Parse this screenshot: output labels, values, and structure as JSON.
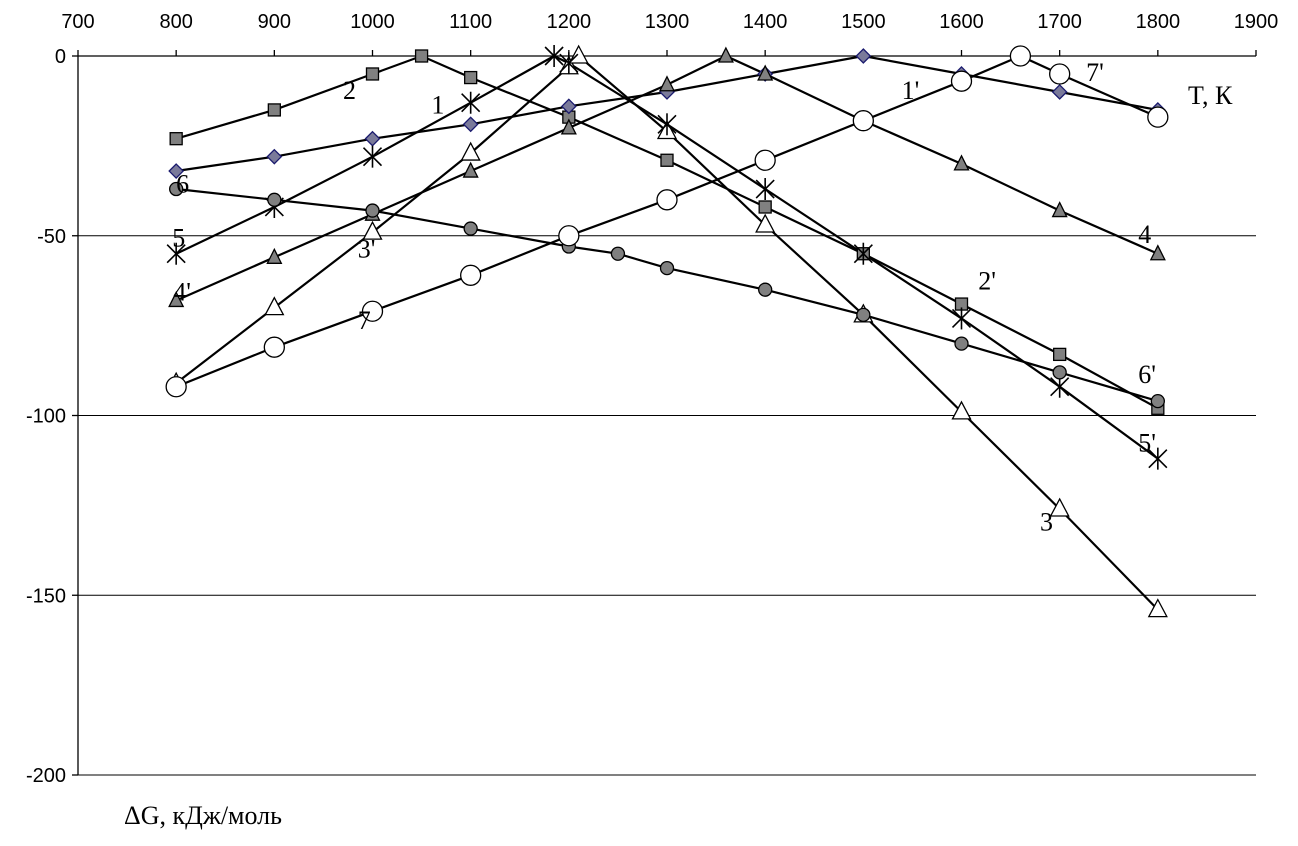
{
  "chart_data": {
    "type": "line",
    "xlabel": "T, К",
    "ylabel": "ΔG, кДж/моль",
    "xlim": [
      700,
      1900
    ],
    "ylim": [
      -200,
      0
    ],
    "x_ticks": [
      700,
      800,
      900,
      1000,
      1100,
      1200,
      1300,
      1400,
      1500,
      1600,
      1700,
      1800,
      1900
    ],
    "y_ticks": [
      0,
      -50,
      -100,
      -150,
      -200
    ],
    "grid": "horizontal",
    "x_axis_position": "top",
    "series": [
      {
        "marker": "square",
        "color": "#808080",
        "x": [
          800,
          900,
          1000,
          1050,
          1100,
          1200,
          1300,
          1400,
          1500,
          1600,
          1700,
          1800
        ],
        "y": [
          -23,
          -15,
          -5,
          0,
          -6,
          -17,
          -29,
          -42,
          -55,
          -69,
          -83,
          -98
        ]
      },
      {
        "marker": "diamond",
        "color": "#7a7a9a",
        "x": [
          800,
          900,
          1000,
          1100,
          1200,
          1300,
          1400,
          1500,
          1600,
          1700,
          1800
        ],
        "y": [
          -32,
          -28,
          -23,
          -19,
          -14,
          -10,
          -5,
          0,
          -5,
          -10,
          -15
        ]
      },
      {
        "marker": "triangle-open",
        "color": "#ffffff",
        "x": [
          800,
          900,
          1000,
          1100,
          1200,
          1210,
          1300,
          1400,
          1500,
          1600,
          1700,
          1800
        ],
        "y": [
          -91,
          -70,
          -49,
          -27,
          -3,
          0,
          -21,
          -47,
          -72,
          -99,
          -126,
          -154
        ]
      },
      {
        "marker": "triangle",
        "color": "#808080",
        "x": [
          800,
          900,
          1000,
          1100,
          1200,
          1300,
          1360,
          1400,
          1500,
          1600,
          1700,
          1800
        ],
        "y": [
          -68,
          -56,
          -44,
          -32,
          -20,
          -8,
          0,
          -5,
          -18,
          -30,
          -43,
          -55
        ]
      },
      {
        "marker": "star",
        "color": "#000000",
        "x": [
          800,
          900,
          1000,
          1100,
          1185,
          1200,
          1300,
          1400,
          1500,
          1600,
          1700,
          1800
        ],
        "y": [
          -55,
          -42,
          -28,
          -13,
          0,
          -2,
          -19,
          -37,
          -55,
          -73,
          -92,
          -112
        ]
      },
      {
        "marker": "circle",
        "color": "#808080",
        "x": [
          800,
          900,
          1000,
          1100,
          1200,
          1250,
          1300,
          1400,
          1500,
          1600,
          1700,
          1800
        ],
        "y": [
          -37,
          -40,
          -43,
          -48,
          -53,
          -55,
          -59,
          -65,
          -72,
          -80,
          -88,
          -96
        ]
      },
      {
        "marker": "circle-open",
        "color": "#ffffff",
        "x": [
          800,
          900,
          1000,
          1100,
          1200,
          1300,
          1400,
          1500,
          1600,
          1660,
          1700,
          1800
        ],
        "y": [
          -92,
          -81,
          -71,
          -61,
          -50,
          -40,
          -29,
          -18,
          -7,
          0,
          -5,
          -17
        ]
      }
    ],
    "annotations": [
      {
        "text": "1",
        "x": 1060,
        "y": -16
      },
      {
        "text": "2",
        "x": 970,
        "y": -12
      },
      {
        "text": "3",
        "x": 1680,
        "y": -132
      },
      {
        "text": "4",
        "x": 1780,
        "y": -52
      },
      {
        "text": "5",
        "x": 796,
        "y": -53
      },
      {
        "text": "6",
        "x": 800,
        "y": -38
      },
      {
        "text": "7",
        "x": 985,
        "y": -76
      },
      {
        "text": "1'",
        "x": 1539,
        "y": -12
      },
      {
        "text": "2'",
        "x": 1617,
        "y": -65
      },
      {
        "text": "3'",
        "x": 985,
        "y": -56
      },
      {
        "text": "4'",
        "x": 797,
        "y": -68
      },
      {
        "text": "5'",
        "x": 1780,
        "y": -110
      },
      {
        "text": "6'",
        "x": 1780,
        "y": -91
      },
      {
        "text": "7'",
        "x": 1727,
        "y": -7
      }
    ]
  }
}
